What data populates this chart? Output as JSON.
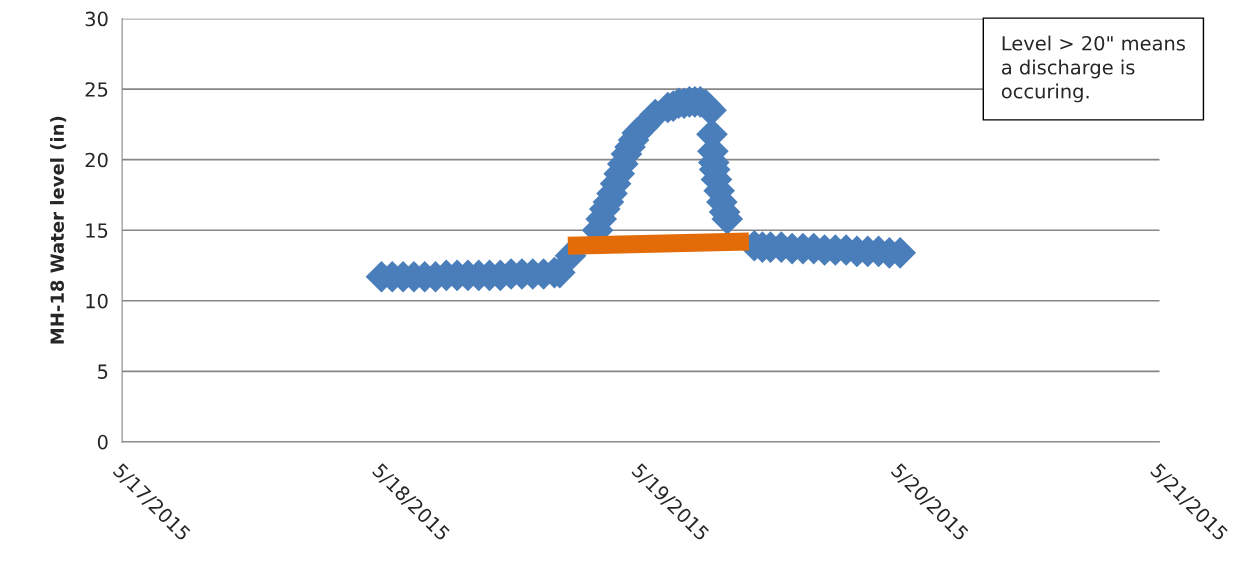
{
  "chart_data": {
    "type": "scatter",
    "ylabel": "MH-18 Water level (in)",
    "annotations": [
      "Level > 20\" means a discharge is occuring."
    ],
    "series": [
      {
        "color": "#4a7ebb",
        "marker": "diamond",
        "x": [
          "2015-05-18T00:00",
          "2015-05-18T01:00",
          "2015-05-18T02:00",
          "2015-05-18T03:00",
          "2015-05-18T04:00",
          "2015-05-18T05:00",
          "2015-05-18T06:00",
          "2015-05-18T07:00",
          "2015-05-18T08:00",
          "2015-05-18T09:00",
          "2015-05-18T10:00",
          "2015-05-18T11:00",
          "2015-05-18T12:00",
          "2015-05-18T13:00",
          "2015-05-18T14:00",
          "2015-05-18T15:00",
          "2015-05-18T16:00",
          "2015-05-18T16:30",
          "2015-05-18T17:30",
          "2015-05-18T20:00",
          "2015-05-18T20:20",
          "2015-05-18T20:40",
          "2015-05-18T21:00",
          "2015-05-18T21:20",
          "2015-05-18T21:40",
          "2015-05-18T22:00",
          "2015-05-18T22:20",
          "2015-05-18T22:40",
          "2015-05-18T23:00",
          "2015-05-18T23:20",
          "2015-05-18T23:40",
          "2015-05-19T00:20",
          "2015-05-19T01:20",
          "2015-05-19T02:30",
          "2015-05-19T03:00",
          "2015-05-19T03:30",
          "2015-05-19T04:00",
          "2015-05-19T04:30",
          "2015-05-19T05:00",
          "2015-05-19T05:30",
          "2015-05-19T06:00",
          "2015-05-19T06:30",
          "2015-05-19T06:35",
          "2015-05-19T06:40",
          "2015-05-19T06:45",
          "2015-05-19T06:50",
          "2015-05-19T07:00",
          "2015-05-19T07:15",
          "2015-05-19T07:30",
          "2015-05-19T07:45",
          "2015-05-19T08:00",
          "2015-05-19T10:30",
          "2015-05-19T11:15",
          "2015-05-19T12:00",
          "2015-05-19T13:00",
          "2015-05-19T14:00",
          "2015-05-19T15:00",
          "2015-05-19T16:00",
          "2015-05-19T17:00",
          "2015-05-19T18:00",
          "2015-05-19T19:00",
          "2015-05-19T20:00",
          "2015-05-19T21:00",
          "2015-05-19T22:00",
          "2015-05-19T23:00",
          "2015-05-20T00:00"
        ],
        "values": [
          11.7,
          11.7,
          11.7,
          11.7,
          11.7,
          11.7,
          11.8,
          11.8,
          11.8,
          11.8,
          11.8,
          11.8,
          11.9,
          11.9,
          11.9,
          11.9,
          12.0,
          12.0,
          13.2,
          15.0,
          15.8,
          16.5,
          17.0,
          17.6,
          18.3,
          19.0,
          19.7,
          20.4,
          20.9,
          21.4,
          21.9,
          22.4,
          23.2,
          23.7,
          23.8,
          24.0,
          24.0,
          24.1,
          24.1,
          24.1,
          23.9,
          23.5,
          21.8,
          20.6,
          19.8,
          19.3,
          18.6,
          17.8,
          17.0,
          16.3,
          15.8,
          13.9,
          13.8,
          13.8,
          13.8,
          13.7,
          13.7,
          13.7,
          13.6,
          13.6,
          13.6,
          13.5,
          13.5,
          13.5,
          13.4,
          13.4
        ]
      },
      {
        "type": "line",
        "color": "#e36c09",
        "marker": "none",
        "line_style": "solid",
        "x": [
          "2015-05-18T17:15",
          "2015-05-19T10:00"
        ],
        "values": [
          13.9,
          14.2
        ]
      }
    ],
    "xlim": [
      "2015-05-17",
      "2015-05-21"
    ],
    "xticks": [
      {
        "value": "2015-05-17",
        "label": "5/17/2015"
      },
      {
        "value": "2015-05-18",
        "label": "5/18/2015"
      },
      {
        "value": "2015-05-19",
        "label": "5/19/2015"
      },
      {
        "value": "2015-05-20",
        "label": "5/20/2015"
      },
      {
        "value": "2015-05-21",
        "label": "5/21/2015"
      }
    ],
    "ylim": [
      0,
      30
    ],
    "yticks": [
      0,
      5,
      10,
      15,
      20,
      25,
      30
    ],
    "grid": "y",
    "legend": false
  }
}
